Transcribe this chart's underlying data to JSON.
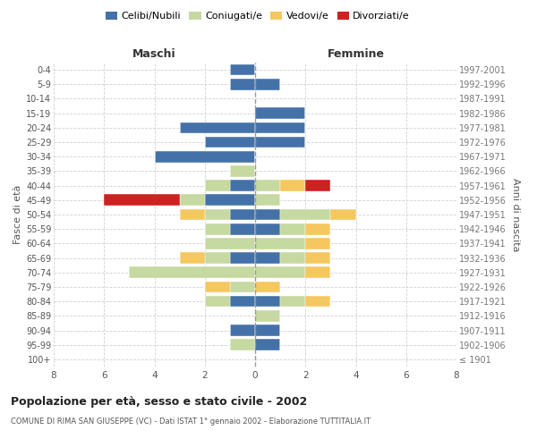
{
  "age_groups": [
    "100+",
    "95-99",
    "90-94",
    "85-89",
    "80-84",
    "75-79",
    "70-74",
    "65-69",
    "60-64",
    "55-59",
    "50-54",
    "45-49",
    "40-44",
    "35-39",
    "30-34",
    "25-29",
    "20-24",
    "15-19",
    "10-14",
    "5-9",
    "0-4"
  ],
  "birth_years": [
    "≤ 1901",
    "1902-1906",
    "1907-1911",
    "1912-1916",
    "1917-1921",
    "1922-1926",
    "1927-1931",
    "1932-1936",
    "1937-1941",
    "1942-1946",
    "1947-1951",
    "1952-1956",
    "1957-1961",
    "1962-1966",
    "1967-1971",
    "1972-1976",
    "1977-1981",
    "1982-1986",
    "1987-1991",
    "1992-1996",
    "1997-2001"
  ],
  "maschi": {
    "celibi": [
      0,
      0,
      1,
      0,
      1,
      0,
      0,
      1,
      0,
      1,
      1,
      2,
      1,
      0,
      4,
      2,
      3,
      0,
      0,
      1,
      1
    ],
    "coniugati": [
      0,
      1,
      0,
      0,
      1,
      1,
      5,
      1,
      2,
      1,
      1,
      1,
      1,
      1,
      0,
      0,
      0,
      0,
      0,
      0,
      0
    ],
    "vedovi": [
      0,
      0,
      0,
      0,
      0,
      1,
      0,
      1,
      0,
      0,
      1,
      0,
      0,
      0,
      0,
      0,
      0,
      0,
      0,
      0,
      0
    ],
    "divorziati": [
      0,
      0,
      0,
      0,
      0,
      0,
      0,
      0,
      0,
      0,
      0,
      3,
      0,
      0,
      0,
      0,
      0,
      0,
      0,
      0,
      0
    ]
  },
  "femmine": {
    "nubili": [
      0,
      1,
      1,
      0,
      1,
      0,
      0,
      1,
      0,
      1,
      1,
      0,
      0,
      0,
      0,
      2,
      2,
      2,
      0,
      1,
      0
    ],
    "coniugate": [
      0,
      0,
      0,
      1,
      1,
      0,
      2,
      1,
      2,
      1,
      2,
      1,
      1,
      0,
      0,
      0,
      0,
      0,
      0,
      0,
      0
    ],
    "vedove": [
      0,
      0,
      0,
      0,
      1,
      1,
      1,
      1,
      1,
      1,
      1,
      0,
      1,
      0,
      0,
      0,
      0,
      0,
      0,
      0,
      0
    ],
    "divorziate": [
      0,
      0,
      0,
      0,
      0,
      0,
      0,
      0,
      0,
      0,
      0,
      0,
      1,
      0,
      0,
      0,
      0,
      0,
      0,
      0,
      0
    ]
  },
  "colors": {
    "celibi": "#4472a8",
    "coniugati": "#c5d9a0",
    "vedovi": "#f5c75f",
    "divorziati": "#cc2222"
  },
  "legend_labels": [
    "Celibi/Nubili",
    "Coniugati/e",
    "Vedovi/e",
    "Divorziati/e"
  ],
  "title": "Popolazione per età, sesso e stato civile - 2002",
  "subtitle": "COMUNE DI RIMA SAN GIUSEPPE (VC) - Dati ISTAT 1° gennaio 2002 - Elaborazione TUTTITALIA.IT",
  "xlabel_left": "Maschi",
  "xlabel_right": "Femmine",
  "ylabel_left": "Fasce di età",
  "ylabel_right": "Anni di nascita",
  "xlim": 8,
  "background_color": "#ffffff",
  "grid_color": "#cccccc"
}
